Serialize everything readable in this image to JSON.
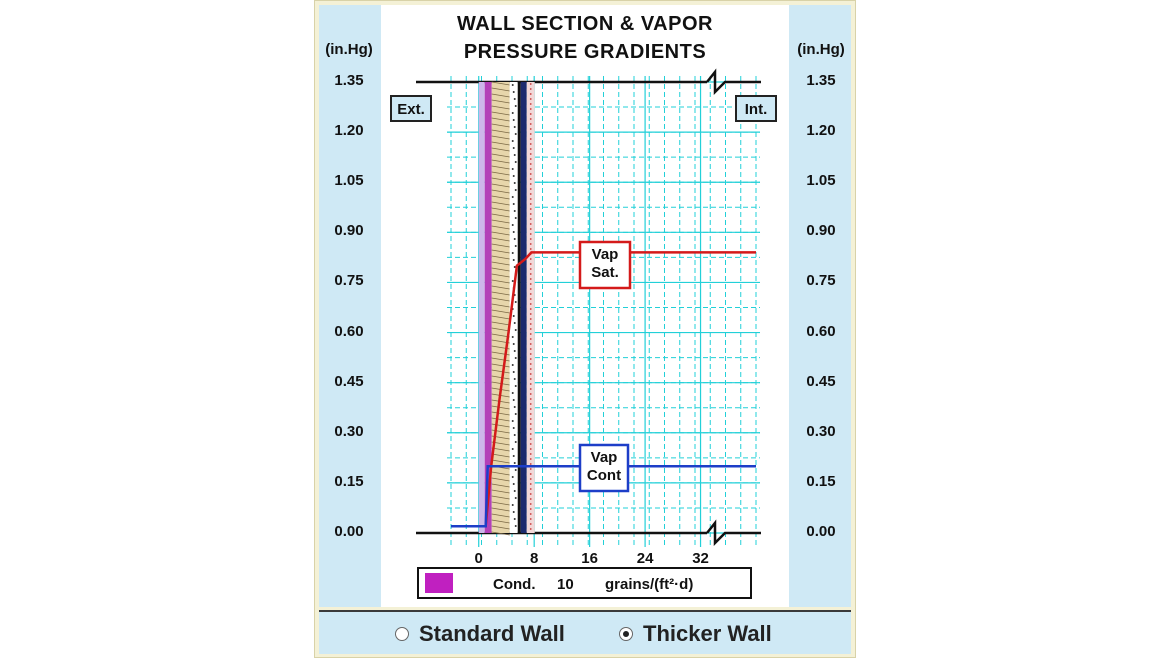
{
  "title_lines": [
    "WALL SECTION & VAPOR",
    "PRESSURE GRADIENTS"
  ],
  "unit_left": "(in.Hg)",
  "unit_right": "(in.Hg)",
  "y_ticks": [
    "1.35",
    "1.20",
    "1.05",
    "0.90",
    "0.75",
    "0.60",
    "0.45",
    "0.30",
    "0.15",
    "0.00"
  ],
  "x_ticks": [
    "0",
    "8",
    "16",
    "24",
    "32"
  ],
  "labels": {
    "exterior": "Ext.",
    "interior": "Int.",
    "vap_sat": [
      "Vap",
      "Sat."
    ],
    "vap_cont": [
      "Vap",
      "Cont"
    ]
  },
  "legend": {
    "label": "Cond.",
    "value": "10",
    "units": "grains/(ft²·d)",
    "swatch_color": "#c020c0"
  },
  "options": {
    "standard_wall": "Standard Wall",
    "thicker_wall": "Thicker Wall",
    "selected": "thicker_wall"
  },
  "colors": {
    "grid": "#22d0d8",
    "vap_sat": "#d41a1a",
    "vap_cont": "#1d3ec8",
    "side_panel": "#cfe9f5",
    "frame": "#f4f1d6"
  },
  "chart_data": {
    "type": "line",
    "xlim": [
      -4,
      40
    ],
    "ylim": [
      0,
      1.35
    ],
    "series": [
      {
        "x": [
          -4,
          1,
          1.8,
          3,
          4.3,
          5.5,
          6.7,
          7.6,
          40
        ],
        "y": [
          0.02,
          0.02,
          0.2,
          0.4,
          0.6,
          0.8,
          0.82,
          0.84,
          0.84
        ]
      },
      {
        "x": [
          -4,
          1,
          1.3,
          5.2,
          5.8,
          40
        ],
        "y": [
          0.02,
          0.02,
          0.2,
          0.2,
          0.2,
          0.2
        ]
      }
    ]
  }
}
